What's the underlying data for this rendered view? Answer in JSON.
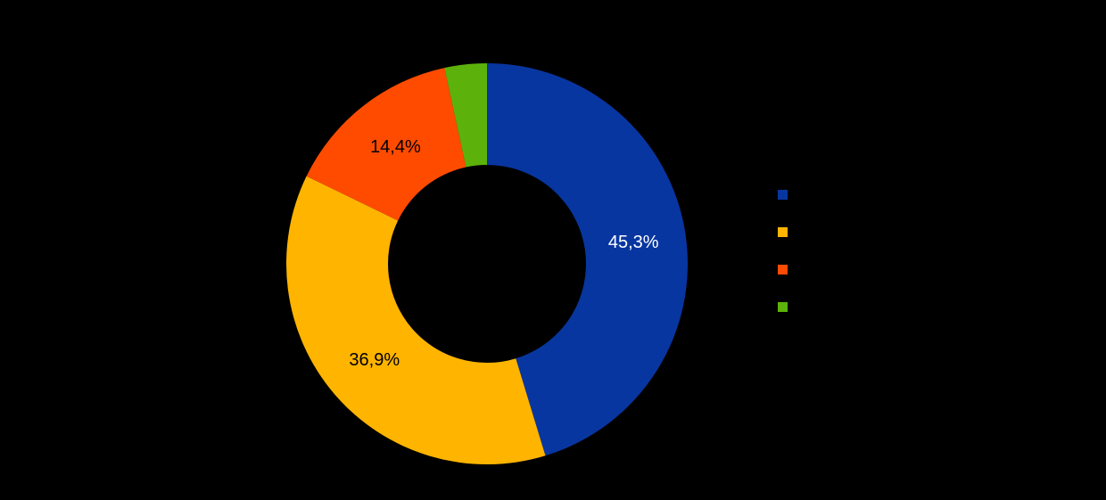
{
  "window": {
    "background_color": "#000000"
  },
  "chart_data": {
    "type": "pie",
    "subtype": "donut",
    "title": "",
    "unit": "%",
    "decimal_separator": ",",
    "direction": "clockwise",
    "start_angle_deg": 0,
    "legend_position": "right",
    "inner_to_outer_radius_ratio": 0.49,
    "slices": [
      {
        "value": 45.3,
        "label": "45,3%",
        "color": "#0836A0",
        "label_color": "#FFFFFF",
        "legend_label": ""
      },
      {
        "value": 36.9,
        "label": "36,9%",
        "color": "#FFB400",
        "label_color": "#000000",
        "legend_label": ""
      },
      {
        "value": 14.4,
        "label": "14,4%",
        "color": "#FF4B00",
        "label_color": "#000000",
        "legend_label": ""
      },
      {
        "value": 3.4,
        "label": "",
        "color": "#5CB20B",
        "label_color": "#000000",
        "legend_label": ""
      }
    ]
  }
}
